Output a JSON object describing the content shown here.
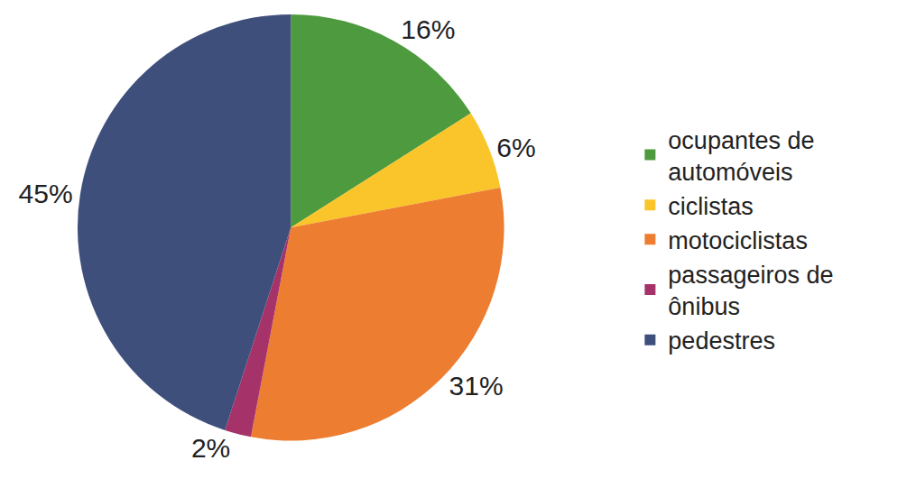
{
  "chart_data": {
    "type": "pie",
    "categories": [
      "ocupantes de automóveis",
      "ciclistas",
      "motociclistas",
      "passageiros de ônibus",
      "pedestres"
    ],
    "values": [
      16,
      6,
      31,
      2,
      45
    ],
    "value_labels": [
      "16%",
      "6%",
      "31%",
      "2%",
      "45%"
    ],
    "colors": [
      "#4e9a3f",
      "#fac52a",
      "#ed7d31",
      "#a5336a",
      "#3f4f7b"
    ],
    "data_labels": true,
    "legend": "right"
  }
}
